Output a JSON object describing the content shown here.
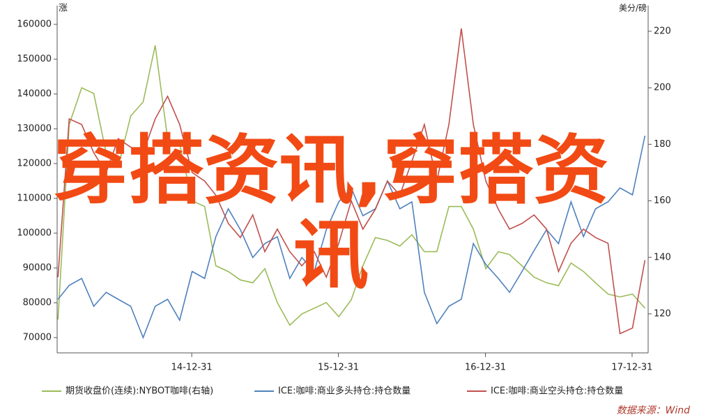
{
  "chart_data": {
    "type": "line",
    "y_label": "涨",
    "y2_label": "美分/磅",
    "x": [
      "2014-02-01",
      "2014-03-01",
      "2014-04-01",
      "2014-05-01",
      "2014-06-01",
      "2014-07-01",
      "2014-08-01",
      "2014-09-01",
      "2014-10-01",
      "2014-11-01",
      "2014-12-01",
      "2015-01-01",
      "2015-02-01",
      "2015-03-01",
      "2015-04-01",
      "2015-05-01",
      "2015-06-01",
      "2015-07-01",
      "2015-08-01",
      "2015-09-01",
      "2015-10-01",
      "2015-11-01",
      "2015-12-01",
      "2016-01-01",
      "2016-02-01",
      "2016-03-01",
      "2016-04-01",
      "2016-05-01",
      "2016-06-01",
      "2016-07-01",
      "2016-08-01",
      "2016-09-01",
      "2016-10-01",
      "2016-11-01",
      "2016-12-01",
      "2017-01-01",
      "2017-02-01",
      "2017-03-01",
      "2017-04-01",
      "2017-05-01",
      "2017-06-01",
      "2017-07-01",
      "2017-08-01",
      "2017-09-01",
      "2017-10-01",
      "2017-11-01",
      "2017-12-01",
      "2018-01-01",
      "2018-02-01"
    ],
    "series": [
      {
        "name": "期货收盘价(连续):NYBOT咖啡(右轴)",
        "color": "#9bbb59",
        "axis": "y2",
        "values": [
          118,
          187,
          200,
          198,
          177,
          172,
          190,
          195,
          215,
          182,
          180,
          160,
          158,
          137,
          135,
          132,
          131,
          136,
          124,
          116,
          120,
          122,
          124,
          119,
          125,
          137,
          147,
          146,
          144,
          148,
          142,
          142,
          158,
          158,
          150,
          136,
          142,
          141,
          137,
          133,
          131,
          130,
          138,
          135,
          131,
          127,
          126,
          127,
          122
        ]
      },
      {
        "name": "ICE:咖啡:商业多头持仓:持仓数量",
        "color": "#4f81bd",
        "values": [
          81000,
          85000,
          87000,
          79000,
          83000,
          81000,
          79000,
          70000,
          79000,
          81000,
          75000,
          89000,
          87000,
          99000,
          107000,
          101000,
          93000,
          97000,
          99000,
          87000,
          93000,
          89000,
          101000,
          109000,
          113000,
          105000,
          107000,
          115000,
          107000,
          109000,
          83000,
          74000,
          79000,
          81000,
          97000,
          91000,
          87000,
          83000,
          89000,
          95000,
          101000,
          97000,
          109000,
          99000,
          107000,
          109000,
          113000,
          111000,
          128000
        ]
      },
      {
        "name": "ICE:咖啡:商业空头持仓:持仓数量",
        "color": "#c0504d",
        "axis": "y2",
        "values": [
          133,
          189,
          187,
          177,
          170,
          182,
          179,
          177,
          189,
          197,
          187,
          170,
          167,
          162,
          152,
          147,
          155,
          142,
          150,
          142,
          137,
          142,
          133,
          145,
          160,
          150,
          157,
          167,
          162,
          174,
          187,
          167,
          187,
          221,
          187,
          167,
          157,
          150,
          152,
          155,
          150,
          135,
          145,
          150,
          147,
          145,
          113,
          115,
          139
        ]
      }
    ],
    "xlim": [
      "2014-01-30",
      "2018-02-09"
    ],
    "xticks": [
      {
        "value": "2014-12-31",
        "label": "14-12-31"
      },
      {
        "value": "2015-12-31",
        "label": "15-12-31"
      },
      {
        "value": "2016-12-31",
        "label": "16-12-31"
      },
      {
        "value": "2017-12-31",
        "label": "17-12-31"
      }
    ],
    "ylim": [
      65600,
      165000
    ],
    "yticks": [
      70000,
      80000,
      90000,
      100000,
      110000,
      120000,
      130000,
      140000,
      150000,
      160000
    ],
    "y2lim": [
      106.2,
      228.6
    ],
    "y2ticks": [
      120,
      140,
      160,
      180,
      200,
      220
    ],
    "grid": false,
    "source": "数据来源：Wind"
  },
  "overlay_text": "穿搭资讯,穿搭资讯"
}
